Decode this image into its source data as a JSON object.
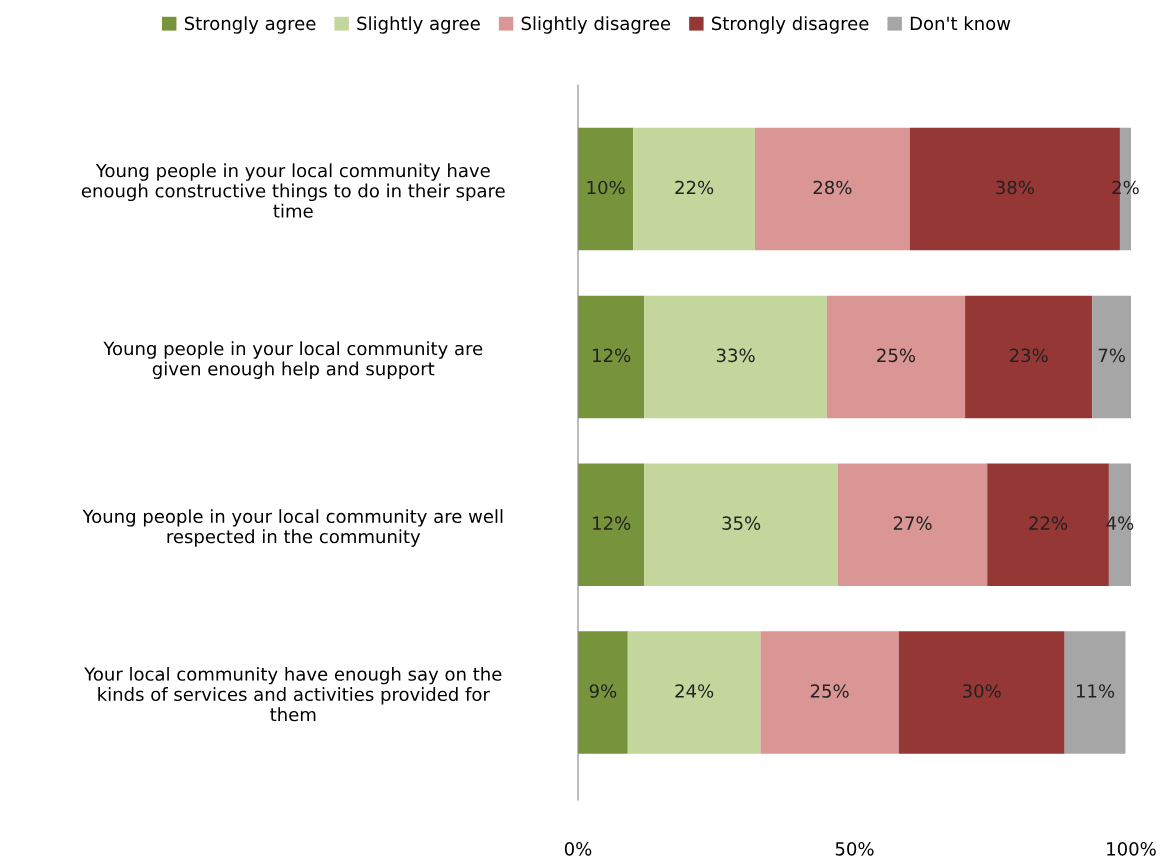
{
  "chart_data": {
    "type": "bar",
    "orientation": "horizontal",
    "stacked": true,
    "categories": [
      "Young people in your local community have\nenough constructive things to do in their spare\ntime",
      "Young people in your local community are\ngiven enough help and support",
      "Young people in your local community are well\nrespected in the community",
      "Your local community have enough say on the\nkinds of services and activities provided for\nthem"
    ],
    "series": [
      {
        "name": "Strongly agree",
        "color": "#77933c",
        "values": [
          10,
          12,
          12,
          9
        ],
        "value_labels": [
          "10%",
          "12%",
          "12%",
          "9%"
        ]
      },
      {
        "name": "Slightly agree",
        "color": "#c3d69b",
        "values": [
          22,
          33,
          35,
          24
        ],
        "value_labels": [
          "22%",
          "33%",
          "35%",
          "24%"
        ]
      },
      {
        "name": "Slightly disagree",
        "color": "#d99694",
        "values": [
          28,
          25,
          27,
          25
        ],
        "value_labels": [
          "28%",
          "25%",
          "27%",
          "25%"
        ]
      },
      {
        "name": "Strongly disagree",
        "color": "#953735",
        "values": [
          38,
          23,
          22,
          30
        ],
        "value_labels": [
          "38%",
          "23%",
          "22%",
          "30%"
        ]
      },
      {
        "name": "Don't know",
        "color": "#a6a6a6",
        "values": [
          2,
          7,
          4,
          11
        ],
        "value_labels": [
          "2%",
          "7%",
          "4%",
          "11%"
        ]
      }
    ],
    "xlim": [
      0,
      100
    ],
    "xticks": [
      {
        "value": 0,
        "label": "0%"
      },
      {
        "value": 50,
        "label": "50%"
      },
      {
        "value": 100,
        "label": "100%"
      }
    ],
    "grid": false,
    "legend": "top"
  }
}
